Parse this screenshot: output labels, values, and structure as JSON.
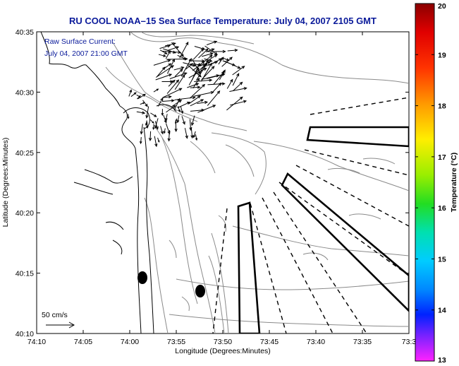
{
  "title": "RU COOL   NOAA–15  Sea Surface Temperature:  July 04, 2007 2105 GMT",
  "inset": {
    "line1": "Raw Surface Current:",
    "line2": "July 04, 2007 21:00 GMT"
  },
  "scale_label": "50 cm/s",
  "axes": {
    "xlabel": "Longitude (Degrees:Minutes)",
    "ylabel": "Latitude (Degrees:Minutes)",
    "x_ticks": [
      "74:10",
      "74:05",
      "74:00",
      "73:55",
      "73:50",
      "73:45",
      "73:40",
      "73:35",
      "73:3"
    ],
    "y_ticks": [
      "40:35",
      "40:30",
      "40:25",
      "40:20",
      "40:15",
      "40:10"
    ]
  },
  "colorbar": {
    "label": "Temperature (°C)",
    "ticks": [
      "20",
      "19",
      "18",
      "17",
      "16",
      "15",
      "14",
      "13"
    ],
    "min": 13,
    "max": 20
  }
}
